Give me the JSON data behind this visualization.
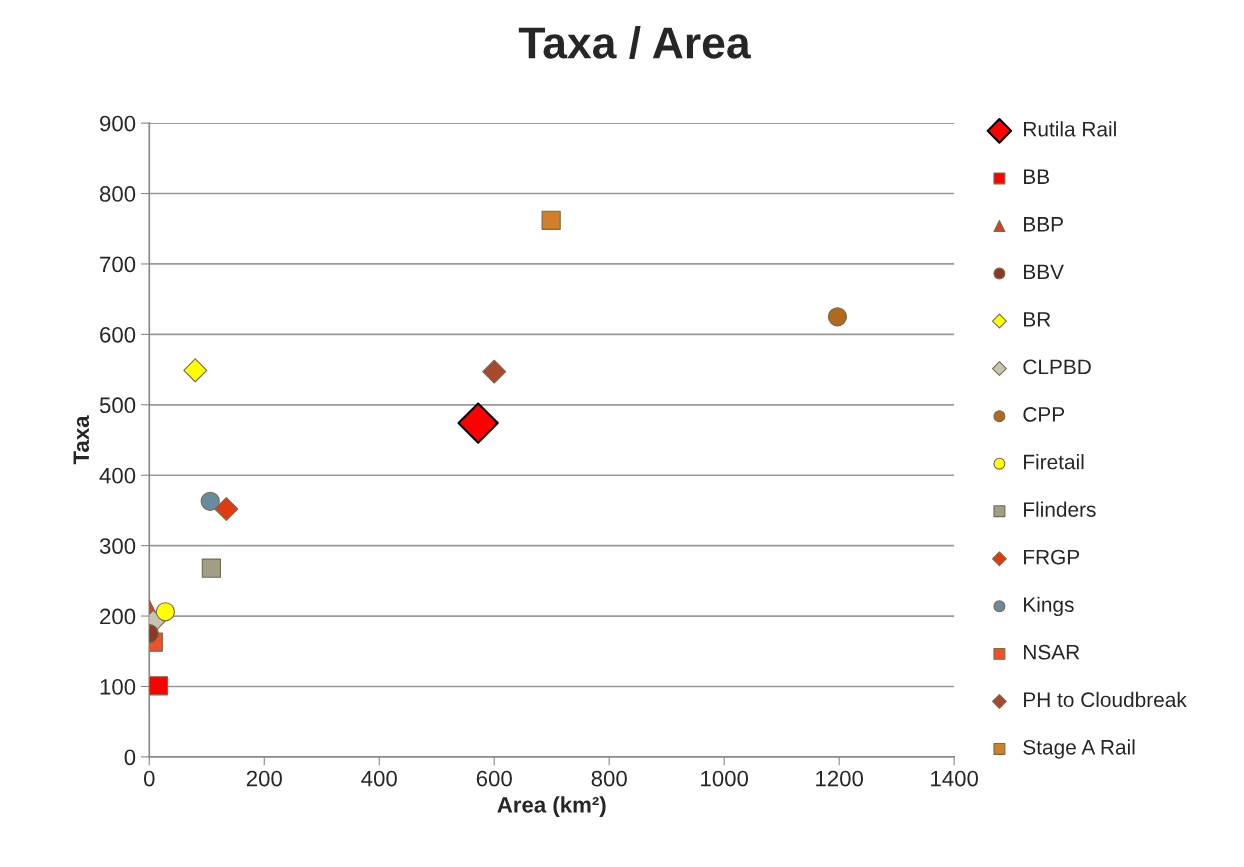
{
  "chart_data": {
    "type": "scatter",
    "title": "Taxa / Area",
    "xlabel": "Area (km²)",
    "ylabel": "Taxa",
    "xlim": [
      0,
      1400
    ],
    "xticks": [
      0,
      200,
      400,
      600,
      800,
      1000,
      1200,
      1400
    ],
    "ylim": [
      0,
      900
    ],
    "yticks": [
      0,
      100,
      200,
      300,
      400,
      500,
      600,
      700,
      800,
      900
    ],
    "grid": "y",
    "legend": "right",
    "series": [
      {
        "name": "Rutila Rail",
        "color": "#ff0000",
        "marker": "diamond",
        "x": [
          572
        ],
        "values": [
          474
        ]
      },
      {
        "name": "BB",
        "color": "#ff0000",
        "marker": "square",
        "x": [
          16
        ],
        "values": [
          101
        ]
      },
      {
        "name": "BBP",
        "color": "#d4421e",
        "marker": "triangle",
        "x": [
          0
        ],
        "values": [
          210
        ]
      },
      {
        "name": "BBV",
        "color": "#8b3a24",
        "marker": "circle",
        "x": [
          0
        ],
        "values": [
          175
        ]
      },
      {
        "name": "BR",
        "color": "#ffff00",
        "marker": "diamond",
        "x": [
          80
        ],
        "values": [
          549
        ]
      },
      {
        "name": "CLPBD",
        "color": "#c8c3b5",
        "marker": "diamond",
        "x": [
          7
        ],
        "values": [
          192
        ]
      },
      {
        "name": "CPP",
        "color": "#b06a20",
        "marker": "circle",
        "x": [
          1197
        ],
        "values": [
          625
        ]
      },
      {
        "name": "Firetail",
        "color": "#ffff00",
        "marker": "circle",
        "x": [
          28
        ],
        "values": [
          206
        ]
      },
      {
        "name": "Flinders",
        "color": "#a09e88",
        "marker": "square",
        "x": [
          108
        ],
        "values": [
          268
        ]
      },
      {
        "name": "FRGP",
        "color": "#e03a10",
        "marker": "diamond",
        "x": [
          134
        ],
        "values": [
          352
        ]
      },
      {
        "name": "Kings",
        "color": "#6a8a9e",
        "marker": "circle",
        "x": [
          106
        ],
        "values": [
          363
        ]
      },
      {
        "name": "NSAR",
        "color": "#f0502a",
        "marker": "square",
        "x": [
          7
        ],
        "values": [
          163
        ]
      },
      {
        "name": "PH to Cloudbreak",
        "color": "#a9482c",
        "marker": "diamond",
        "x": [
          600
        ],
        "values": [
          547
        ]
      },
      {
        "name": "Stage A Rail",
        "color": "#d08028",
        "marker": "square",
        "x": [
          699
        ],
        "values": [
          762
        ]
      }
    ]
  }
}
